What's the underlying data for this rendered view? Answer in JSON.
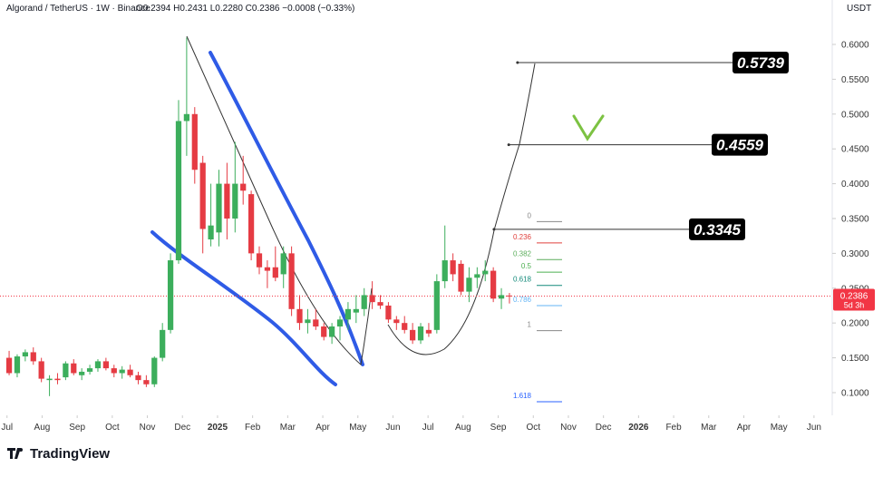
{
  "header": {
    "symbol": "Algorand / TetherUS · 1W · Binance",
    "ohlc": "O0.2394 H0.2431 L0.2280 C0.2386 −0.0008 (−0.33%)",
    "currency": "USDT"
  },
  "footer": {
    "brand": "TradingView"
  },
  "chart_data": {
    "type": "candlestick",
    "x": [
      0.06,
      0.29,
      0.52,
      0.75,
      0.98,
      1.21,
      1.44,
      1.67,
      1.9,
      2.13,
      2.36,
      2.59,
      2.82,
      3.05,
      3.28,
      3.51,
      3.74,
      3.97,
      4.2,
      4.43,
      4.66,
      4.89,
      5.12,
      5.35,
      5.58,
      5.81,
      6.04,
      6.27,
      6.5,
      6.73,
      6.96,
      7.19,
      7.42,
      7.65,
      7.88,
      8.11,
      8.34,
      8.57,
      8.8,
      9.03,
      9.26,
      9.49,
      9.72,
      9.95,
      10.18,
      10.41,
      10.64,
      10.87,
      11.1,
      11.33,
      11.56,
      11.79,
      12.02,
      12.25,
      12.48,
      12.71,
      12.94,
      13.17,
      13.4,
      13.63,
      13.86,
      14.09,
      14.32
    ],
    "open": [
      0.15,
      0.128,
      0.152,
      0.158,
      0.145,
      0.118,
      0.12,
      0.122,
      0.142,
      0.125,
      0.13,
      0.135,
      0.145,
      0.135,
      0.128,
      0.133,
      0.125,
      0.118,
      0.112,
      0.15,
      0.19,
      0.29,
      0.49,
      0.5,
      0.43,
      0.32,
      0.33,
      0.4,
      0.35,
      0.4,
      0.385,
      0.3,
      0.28,
      0.28,
      0.27,
      0.3,
      0.22,
      0.2,
      0.205,
      0.195,
      0.18,
      0.195,
      0.205,
      0.215,
      0.22,
      0.24,
      0.23,
      0.225,
      0.205,
      0.2,
      0.19,
      0.175,
      0.19,
      0.19,
      0.26,
      0.29,
      0.285,
      0.245,
      0.265,
      0.27,
      0.275,
      0.235,
      0.2394
    ],
    "high": [
      0.16,
      0.155,
      0.162,
      0.165,
      0.15,
      0.125,
      0.128,
      0.145,
      0.148,
      0.135,
      0.14,
      0.148,
      0.15,
      0.14,
      0.138,
      0.14,
      0.13,
      0.125,
      0.152,
      0.2,
      0.3,
      0.52,
      0.61,
      0.51,
      0.44,
      0.4,
      0.42,
      0.43,
      0.46,
      0.44,
      0.39,
      0.31,
      0.29,
      0.31,
      0.31,
      0.31,
      0.24,
      0.22,
      0.22,
      0.2,
      0.2,
      0.21,
      0.23,
      0.24,
      0.25,
      0.26,
      0.24,
      0.23,
      0.21,
      0.21,
      0.2,
      0.2,
      0.2,
      0.27,
      0.34,
      0.3,
      0.29,
      0.28,
      0.28,
      0.29,
      0.28,
      0.25,
      0.2431
    ],
    "low": [
      0.125,
      0.122,
      0.145,
      0.14,
      0.115,
      0.095,
      0.112,
      0.118,
      0.125,
      0.118,
      0.126,
      0.13,
      0.132,
      0.122,
      0.12,
      0.122,
      0.112,
      0.108,
      0.108,
      0.145,
      0.185,
      0.285,
      0.44,
      0.4,
      0.3,
      0.31,
      0.31,
      0.32,
      0.33,
      0.37,
      0.29,
      0.27,
      0.25,
      0.26,
      0.25,
      0.21,
      0.19,
      0.185,
      0.19,
      0.175,
      0.17,
      0.175,
      0.19,
      0.2,
      0.21,
      0.22,
      0.22,
      0.2,
      0.19,
      0.185,
      0.17,
      0.17,
      0.18,
      0.185,
      0.25,
      0.26,
      0.24,
      0.23,
      0.25,
      0.26,
      0.23,
      0.22,
      0.228
    ],
    "close": [
      0.128,
      0.152,
      0.158,
      0.145,
      0.12,
      0.12,
      0.118,
      0.142,
      0.128,
      0.13,
      0.135,
      0.145,
      0.135,
      0.128,
      0.133,
      0.125,
      0.118,
      0.112,
      0.15,
      0.19,
      0.29,
      0.49,
      0.5,
      0.42,
      0.335,
      0.34,
      0.4,
      0.35,
      0.4,
      0.39,
      0.3,
      0.28,
      0.275,
      0.265,
      0.3,
      0.22,
      0.2,
      0.205,
      0.195,
      0.18,
      0.195,
      0.205,
      0.22,
      0.22,
      0.24,
      0.23,
      0.225,
      0.205,
      0.2,
      0.19,
      0.175,
      0.195,
      0.185,
      0.26,
      0.29,
      0.27,
      0.245,
      0.265,
      0.27,
      0.275,
      0.235,
      0.24,
      0.2386
    ],
    "up_color": "#3cae5c",
    "down_color": "#e53b43",
    "xlim": [
      -0.2,
      23.52
    ],
    "xticks": [
      {
        "value": 0,
        "label": "Jul"
      },
      {
        "value": 1,
        "label": "Aug"
      },
      {
        "value": 2,
        "label": "Sep"
      },
      {
        "value": 3,
        "label": "Oct"
      },
      {
        "value": 4,
        "label": "Nov"
      },
      {
        "value": 5,
        "label": "Dec"
      },
      {
        "value": 6,
        "label": "2025"
      },
      {
        "value": 7,
        "label": "Feb"
      },
      {
        "value": 8,
        "label": "Mar"
      },
      {
        "value": 9,
        "label": "Apr"
      },
      {
        "value": 10,
        "label": "May"
      },
      {
        "value": 11,
        "label": "Jun"
      },
      {
        "value": 12,
        "label": "Jul"
      },
      {
        "value": 13,
        "label": "Aug"
      },
      {
        "value": 14,
        "label": "Sep"
      },
      {
        "value": 15,
        "label": "Oct"
      },
      {
        "value": 16,
        "label": "Nov"
      },
      {
        "value": 17,
        "label": "Dec"
      },
      {
        "value": 18,
        "label": "2026"
      },
      {
        "value": 19,
        "label": "Feb"
      },
      {
        "value": 20,
        "label": "Mar"
      },
      {
        "value": 21,
        "label": "Apr"
      },
      {
        "value": 22,
        "label": "May"
      },
      {
        "value": 23,
        "label": "Jun"
      }
    ],
    "ylim": [
      0.0674,
      0.6638
    ],
    "yticks": [
      {
        "value": 0.1,
        "label": "0.1000"
      },
      {
        "value": 0.15,
        "label": "0.1500"
      },
      {
        "value": 0.2,
        "label": "0.2000"
      },
      {
        "value": 0.25,
        "label": "0.2500"
      },
      {
        "value": 0.3,
        "label": "0.3000"
      },
      {
        "value": 0.35,
        "label": "0.3500"
      },
      {
        "value": 0.4,
        "label": "0.4000"
      },
      {
        "value": 0.45,
        "label": "0.4500"
      },
      {
        "value": 0.5,
        "label": "0.5000"
      },
      {
        "value": 0.55,
        "label": "0.5500"
      },
      {
        "value": 0.6,
        "label": "0.6000"
      }
    ],
    "last_price": {
      "value": 0.2386,
      "label": "0.2386",
      "countdown": "5d 3h",
      "color": "#f23645"
    },
    "fib_levels": [
      {
        "level": 0,
        "price": 0.3455,
        "color": "#888888"
      },
      {
        "level": 0.236,
        "price": 0.315,
        "color": "#e0413d"
      },
      {
        "level": 0.382,
        "price": 0.291,
        "color": "#5cae5c"
      },
      {
        "level": 0.5,
        "price": 0.273,
        "color": "#4caf50"
      },
      {
        "level": 0.618,
        "price": 0.254,
        "color": "#138a7a"
      },
      {
        "level": 0.786,
        "price": 0.225,
        "color": "#64b5f6"
      },
      {
        "level": 1,
        "price": 0.189,
        "color": "#888888"
      },
      {
        "level": 1.618,
        "price": 0.087,
        "color": "#2962ff"
      }
    ],
    "targets": [
      {
        "value": 0.5739,
        "x": 14.55
      },
      {
        "value": 0.4559,
        "x": 14.3
      },
      {
        "value": 0.3345,
        "x": 13.88
      }
    ]
  }
}
